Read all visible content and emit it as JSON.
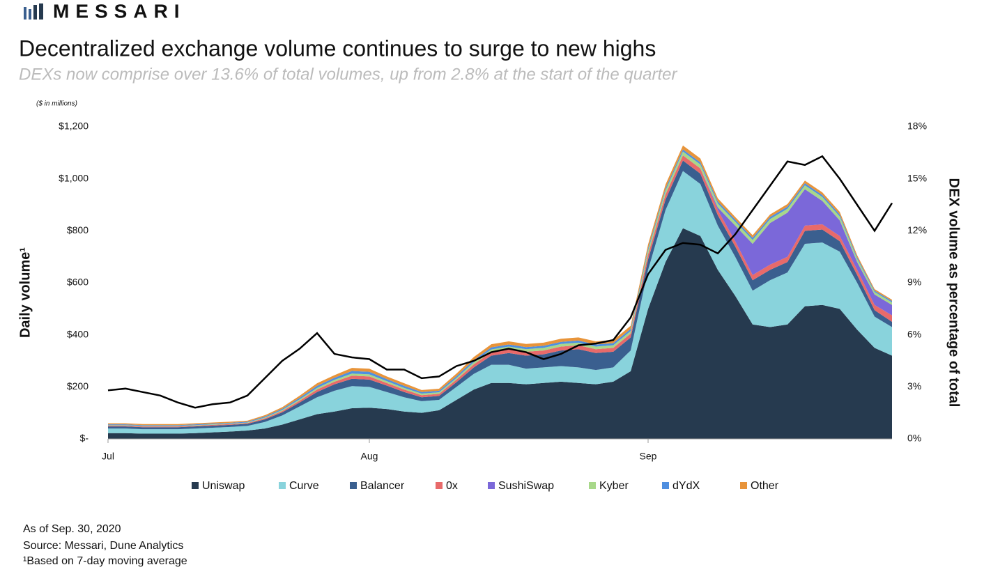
{
  "logo": "MESSARI",
  "chart_data": {
    "type": "stacked-area",
    "title": "Decentralized exchange volume continues to surge to new highs",
    "subtitle": "DEXs now comprise over 13.6% of total volumes, up from 2.8% at the start of the quarter",
    "unit_note": "($ in millions)",
    "y_label": "Daily volume¹",
    "y2_label": "DEX volume as percentage of total",
    "categories": [
      "Jul",
      null,
      null,
      null,
      null,
      null,
      null,
      null,
      null,
      null,
      null,
      null,
      null,
      null,
      null,
      "Aug",
      null,
      null,
      null,
      null,
      null,
      null,
      null,
      null,
      null,
      null,
      null,
      null,
      null,
      null,
      null,
      "Sep",
      null,
      null,
      null,
      null,
      null,
      null,
      null,
      null,
      null,
      null,
      null,
      null,
      null,
      null
    ],
    "ylim": [
      0,
      1200
    ],
    "yticks": [
      {
        "value": 0,
        "label": "$-"
      },
      {
        "value": 200,
        "label": "$200"
      },
      {
        "value": 400,
        "label": "$400"
      },
      {
        "value": 600,
        "label": "$600"
      },
      {
        "value": 800,
        "label": "$800"
      },
      {
        "value": 1000,
        "label": "$1,000"
      },
      {
        "value": 1200,
        "label": "$1,200"
      }
    ],
    "y2lim": [
      0,
      18
    ],
    "y2ticks": [
      {
        "value": 0,
        "label": "0%"
      },
      {
        "value": 3,
        "label": "3%"
      },
      {
        "value": 6,
        "label": "6%"
      },
      {
        "value": 9,
        "label": "9%"
      },
      {
        "value": 12,
        "label": "12%"
      },
      {
        "value": 15,
        "label": "15%"
      },
      {
        "value": 18,
        "label": "18%"
      }
    ],
    "series": [
      {
        "name": "Uniswap",
        "color": "#263a4f",
        "values": [
          22,
          22,
          20,
          20,
          20,
          22,
          25,
          28,
          32,
          40,
          55,
          75,
          95,
          105,
          118,
          120,
          115,
          105,
          100,
          110,
          150,
          190,
          215,
          215,
          210,
          215,
          220,
          215,
          210,
          220,
          260,
          500,
          680,
          810,
          780,
          650,
          550,
          440,
          430,
          440,
          510,
          515,
          500,
          420,
          350,
          320
        ]
      },
      {
        "name": "Curve",
        "color": "#89d3dc",
        "values": [
          18,
          18,
          17,
          17,
          17,
          18,
          18,
          18,
          18,
          25,
          35,
          50,
          65,
          80,
          85,
          80,
          65,
          55,
          45,
          40,
          50,
          60,
          70,
          70,
          60,
          60,
          60,
          60,
          55,
          55,
          80,
          150,
          200,
          220,
          200,
          170,
          150,
          130,
          180,
          200,
          240,
          240,
          220,
          180,
          120,
          110
        ]
      },
      {
        "name": "Balancer",
        "color": "#3a5f8f",
        "values": [
          8,
          8,
          8,
          8,
          8,
          8,
          8,
          8,
          8,
          10,
          12,
          15,
          20,
          25,
          28,
          28,
          25,
          20,
          15,
          15,
          18,
          25,
          35,
          45,
          50,
          50,
          60,
          70,
          65,
          60,
          50,
          40,
          40,
          40,
          40,
          40,
          40,
          40,
          40,
          40,
          50,
          50,
          40,
          30,
          25,
          20
        ]
      },
      {
        "name": "0x",
        "color": "#e86a6a",
        "values": [
          3,
          3,
          3,
          3,
          3,
          3,
          3,
          3,
          3,
          4,
          5,
          7,
          10,
          10,
          12,
          12,
          10,
          10,
          8,
          8,
          10,
          12,
          14,
          15,
          15,
          15,
          15,
          15,
          15,
          15,
          15,
          20,
          20,
          20,
          20,
          20,
          20,
          20,
          20,
          20,
          20,
          20,
          20,
          20,
          20,
          25
        ]
      },
      {
        "name": "SushiSwap",
        "color": "#7b68d9",
        "values": [
          0,
          0,
          0,
          0,
          0,
          0,
          0,
          0,
          0,
          0,
          0,
          0,
          0,
          0,
          0,
          0,
          0,
          0,
          0,
          0,
          0,
          0,
          0,
          0,
          0,
          0,
          0,
          0,
          0,
          0,
          0,
          0,
          0,
          0,
          0,
          10,
          60,
          120,
          160,
          170,
          140,
          90,
          60,
          30,
          40,
          40
        ]
      },
      {
        "name": "Kyber",
        "color": "#a8d88a",
        "values": [
          2,
          2,
          2,
          2,
          2,
          2,
          2,
          2,
          2,
          3,
          4,
          5,
          6,
          7,
          8,
          8,
          7,
          6,
          6,
          6,
          6,
          8,
          10,
          10,
          10,
          10,
          10,
          10,
          10,
          10,
          10,
          15,
          15,
          15,
          15,
          15,
          15,
          15,
          15,
          15,
          15,
          15,
          15,
          12,
          10,
          10
        ]
      },
      {
        "name": "dYdX",
        "color": "#4f8fe0",
        "values": [
          3,
          3,
          3,
          3,
          3,
          3,
          3,
          3,
          3,
          4,
          5,
          6,
          8,
          8,
          10,
          10,
          8,
          8,
          6,
          6,
          7,
          8,
          8,
          8,
          8,
          8,
          8,
          8,
          8,
          8,
          8,
          8,
          8,
          8,
          8,
          8,
          8,
          8,
          8,
          8,
          8,
          8,
          8,
          6,
          5,
          5
        ]
      },
      {
        "name": "Other",
        "color": "#e8943a",
        "values": [
          4,
          4,
          4,
          4,
          4,
          4,
          4,
          4,
          4,
          5,
          6,
          8,
          10,
          10,
          12,
          12,
          10,
          10,
          8,
          8,
          10,
          12,
          12,
          12,
          12,
          12,
          12,
          12,
          12,
          12,
          12,
          15,
          15,
          15,
          15,
          12,
          10,
          10,
          10,
          10,
          10,
          10,
          10,
          8,
          6,
          5
        ]
      },
      {
        "name": "DEX volume as percentage of total",
        "type": "line",
        "axis": "y2",
        "color": "#000000",
        "values": [
          2.8,
          2.9,
          2.7,
          2.5,
          2.1,
          1.8,
          2.0,
          2.1,
          2.5,
          3.5,
          4.5,
          5.2,
          6.1,
          4.9,
          4.7,
          4.6,
          4.0,
          4.0,
          3.5,
          3.6,
          4.2,
          4.5,
          5.0,
          5.2,
          5.0,
          4.6,
          4.9,
          5.4,
          5.5,
          5.7,
          7.0,
          9.5,
          10.9,
          11.3,
          11.2,
          10.7,
          11.8,
          13.2,
          14.6,
          16.0,
          15.8,
          16.3,
          15.0,
          13.5,
          12.0,
          13.6
        ]
      }
    ],
    "footnotes": [
      "As of Sep. 30, 2020",
      "Source: Messari, Dune Analytics",
      "¹Based on 7-day moving average"
    ]
  }
}
